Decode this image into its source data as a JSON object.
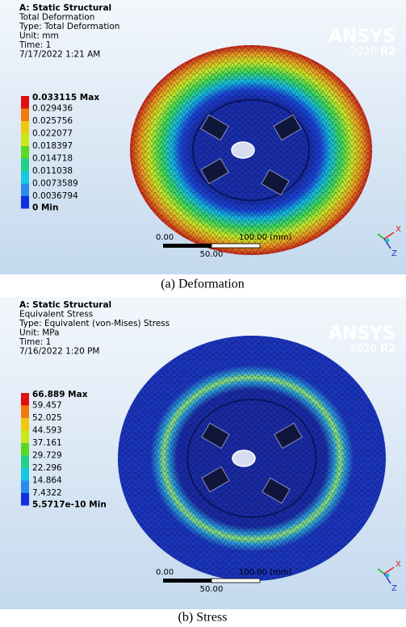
{
  "panels": [
    {
      "header": [
        "A: Static Structural",
        "Total Deformation",
        "Type: Total Deformation",
        "Unit: mm",
        "Time: 1",
        "7/17/2022 1:21 AM"
      ],
      "brand": "ANSYS",
      "version": "2020",
      "release": "R2",
      "legend": [
        "0.033115 Max",
        "0.029436",
        "0.025756",
        "0.022077",
        "0.018397",
        "0.014718",
        "0.011038",
        "0.0073589",
        "0.0036794",
        "0 Min"
      ],
      "scale": {
        "start": "0.00",
        "end": "100.00 (mm)",
        "mid": "50.00"
      },
      "axes": {
        "x": "X",
        "z": "Z"
      },
      "caption": "(a) Deformation"
    },
    {
      "header": [
        "A: Static Structural",
        "Equivalent Stress",
        "Type: Equivalent (von-Mises) Stress",
        "Unit: MPa",
        "Time: 1",
        "7/16/2022 1:20 PM"
      ],
      "brand": "ANSYS",
      "version": "2020",
      "release": "R2",
      "legend": [
        "66.889 Max",
        "59.457",
        "52.025",
        "44.593",
        "37.161",
        "29.729",
        "22.296",
        "14.864",
        "7.4322",
        "5.5717e-10 Min"
      ],
      "scale": {
        "start": "0.00",
        "end": "100.00 (mm)",
        "mid": "50.00"
      },
      "axes": {
        "x": "X",
        "z": "Z"
      },
      "caption": "(b) Stress"
    }
  ]
}
